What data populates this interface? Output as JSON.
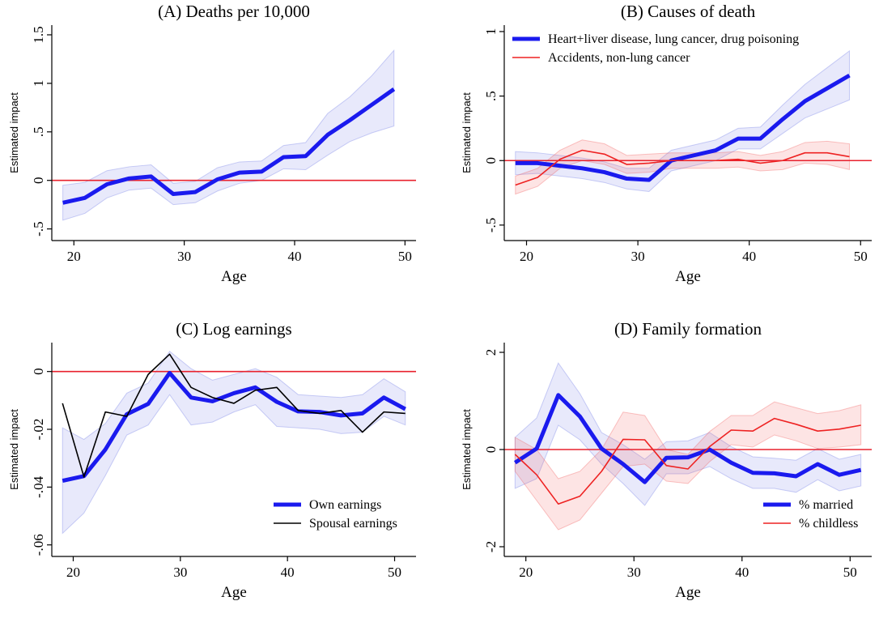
{
  "chart_data": [
    {
      "type": "line",
      "title": "(A) Deaths per 10,000",
      "xlabel": "Age",
      "ylabel": "Estimated impact",
      "xlim": [
        18,
        51
      ],
      "ylim": [
        -0.62,
        1.6
      ],
      "xticks": [
        20,
        30,
        40,
        50
      ],
      "xtick_labels": [
        "20",
        "30",
        "40",
        "50"
      ],
      "yticks": [
        -0.5,
        0,
        0.5,
        1,
        1.5
      ],
      "ytick_labels": [
        "-.5",
        "0",
        ".5",
        "1",
        "1.5"
      ],
      "reference_line": 0,
      "x": [
        19,
        21,
        23,
        25,
        27,
        29,
        31,
        33,
        35,
        37,
        39,
        41,
        43,
        45,
        47,
        49
      ],
      "series": [
        {
          "name": "",
          "color": "#1a1aee",
          "style": "thick",
          "values": [
            -0.23,
            -0.18,
            -0.04,
            0.02,
            0.04,
            -0.14,
            -0.12,
            0.01,
            0.08,
            0.09,
            0.24,
            0.25,
            0.47,
            0.62,
            0.78,
            0.94
          ],
          "ci_low": [
            -0.41,
            -0.34,
            -0.18,
            -0.1,
            -0.08,
            -0.25,
            -0.23,
            -0.11,
            -0.03,
            0.0,
            0.12,
            0.11,
            0.26,
            0.4,
            0.49,
            0.56
          ],
          "ci_high": [
            -0.05,
            -0.02,
            0.1,
            0.14,
            0.16,
            -0.03,
            -0.01,
            0.13,
            0.19,
            0.2,
            0.36,
            0.39,
            0.69,
            0.86,
            1.08,
            1.34
          ]
        }
      ],
      "legend": []
    },
    {
      "type": "line",
      "title": "(B) Causes of death",
      "xlabel": "Age",
      "ylabel": "Estimated impact",
      "xlim": [
        18,
        51
      ],
      "ylim": [
        -0.62,
        1.05
      ],
      "xticks": [
        20,
        30,
        40,
        50
      ],
      "xtick_labels": [
        "20",
        "30",
        "40",
        "50"
      ],
      "yticks": [
        -0.5,
        0,
        0.5,
        1
      ],
      "ytick_labels": [
        "-.5",
        "0",
        ".5",
        "1"
      ],
      "reference_line": 0,
      "x": [
        19,
        21,
        23,
        25,
        27,
        29,
        31,
        33,
        35,
        37,
        39,
        41,
        43,
        45,
        47,
        49
      ],
      "series": [
        {
          "name": "Heart+liver disease, lung cancer, drug poisoning",
          "color": "#1a1aee",
          "style": "thick",
          "values": [
            -0.02,
            -0.02,
            -0.04,
            -0.06,
            -0.09,
            -0.14,
            -0.15,
            0.0,
            0.04,
            0.08,
            0.17,
            0.17,
            0.32,
            0.46,
            0.56,
            0.66
          ],
          "ci_low": [
            -0.11,
            -0.1,
            -0.12,
            -0.14,
            -0.17,
            -0.22,
            -0.24,
            -0.08,
            -0.04,
            0.0,
            0.09,
            0.09,
            0.21,
            0.33,
            0.4,
            0.47
          ],
          "ci_high": [
            0.07,
            0.06,
            0.04,
            0.02,
            -0.01,
            -0.06,
            -0.06,
            0.08,
            0.12,
            0.16,
            0.25,
            0.26,
            0.43,
            0.59,
            0.72,
            0.85
          ]
        },
        {
          "name": "Accidents, non-lung cancer",
          "color": "#ee2222",
          "style": "thin",
          "values": [
            -0.19,
            -0.13,
            0.01,
            0.08,
            0.05,
            -0.03,
            -0.02,
            0.0,
            0.0,
            0.0,
            0.01,
            -0.02,
            0.0,
            0.06,
            0.06,
            0.03
          ],
          "ci_low": [
            -0.26,
            -0.2,
            -0.06,
            0.0,
            -0.03,
            -0.1,
            -0.09,
            -0.06,
            -0.06,
            -0.06,
            -0.05,
            -0.08,
            -0.07,
            -0.02,
            -0.03,
            -0.07
          ],
          "ci_high": [
            -0.12,
            -0.06,
            0.08,
            0.16,
            0.13,
            0.04,
            0.05,
            0.06,
            0.06,
            0.06,
            0.07,
            0.04,
            0.07,
            0.14,
            0.15,
            0.13
          ]
        }
      ],
      "legend": [
        "Heart+liver disease, lung cancer, drug poisoning",
        "Accidents, non-lung cancer"
      ]
    },
    {
      "type": "line",
      "title": "(C) Log earnings",
      "xlabel": "Age",
      "ylabel": "Estimated impact",
      "xlim": [
        18,
        52
      ],
      "ylim": [
        -0.064,
        0.01
      ],
      "xticks": [
        20,
        30,
        40,
        50
      ],
      "xtick_labels": [
        "20",
        "30",
        "40",
        "50"
      ],
      "yticks": [
        -0.06,
        -0.04,
        -0.02,
        0
      ],
      "ytick_labels": [
        "-.06",
        "-.04",
        "-.02",
        "0"
      ],
      "reference_line": 0,
      "x": [
        19,
        21,
        23,
        25,
        27,
        29,
        31,
        33,
        35,
        37,
        39,
        41,
        43,
        45,
        47,
        49,
        51
      ],
      "series": [
        {
          "name": "Own earnings",
          "color": "#1a1aee",
          "style": "thick",
          "values": [
            -0.0378,
            -0.0362,
            -0.027,
            -0.0148,
            -0.0112,
            -0.0005,
            -0.009,
            -0.0103,
            -0.0075,
            -0.0055,
            -0.0105,
            -0.0138,
            -0.014,
            -0.0152,
            -0.0145,
            -0.009,
            -0.013
          ],
          "ci_low": [
            -0.056,
            -0.049,
            -0.036,
            -0.022,
            -0.0185,
            -0.008,
            -0.0185,
            -0.0175,
            -0.014,
            -0.0115,
            -0.019,
            -0.0195,
            -0.02,
            -0.0215,
            -0.021,
            -0.0155,
            -0.0185
          ],
          "ci_high": [
            -0.0195,
            -0.0235,
            -0.018,
            -0.0075,
            -0.004,
            0.007,
            0.001,
            -0.003,
            -0.001,
            0.001,
            -0.002,
            -0.008,
            -0.0085,
            -0.009,
            -0.008,
            -0.0025,
            -0.007
          ]
        },
        {
          "name": "Spousal earnings",
          "color": "#000000",
          "style": "thin",
          "values": [
            -0.011,
            -0.0365,
            -0.014,
            -0.0155,
            -0.001,
            0.006,
            -0.0055,
            -0.009,
            -0.011,
            -0.0065,
            -0.0055,
            -0.0135,
            -0.0145,
            -0.0135,
            -0.021,
            -0.014,
            -0.0145
          ],
          "ci_low": [],
          "ci_high": []
        }
      ],
      "legend": [
        "Own earnings",
        "Spousal earnings"
      ]
    },
    {
      "type": "line",
      "title": "(D) Family formation",
      "xlabel": "Age",
      "ylabel": "Estimated impact",
      "xlim": [
        18,
        52
      ],
      "ylim": [
        -2.2,
        2.2
      ],
      "xticks": [
        20,
        30,
        40,
        50
      ],
      "xtick_labels": [
        "20",
        "30",
        "40",
        "50"
      ],
      "yticks": [
        -2,
        0,
        2
      ],
      "ytick_labels": [
        "-2",
        "0",
        "2"
      ],
      "reference_line": 0,
      "x": [
        19,
        21,
        23,
        25,
        27,
        29,
        31,
        33,
        35,
        37,
        39,
        41,
        43,
        45,
        47,
        49,
        51
      ],
      "series": [
        {
          "name": "% married",
          "color": "#1a1aee",
          "style": "thick",
          "values": [
            -0.27,
            0.02,
            1.12,
            0.68,
            0.02,
            -0.3,
            -0.67,
            -0.17,
            -0.16,
            0.0,
            -0.27,
            -0.48,
            -0.49,
            -0.55,
            -0.3,
            -0.52,
            -0.42
          ],
          "ci_low": [
            -0.8,
            -0.6,
            0.5,
            0.2,
            -0.3,
            -0.7,
            -1.15,
            -0.5,
            -0.5,
            -0.35,
            -0.6,
            -0.8,
            -0.8,
            -0.88,
            -0.62,
            -0.85,
            -0.75
          ],
          "ci_high": [
            0.25,
            0.65,
            1.78,
            1.15,
            0.35,
            0.1,
            -0.2,
            0.16,
            0.18,
            0.35,
            0.06,
            -0.15,
            -0.18,
            -0.22,
            0.02,
            -0.2,
            -0.1
          ]
        },
        {
          "name": "% childless",
          "color": "#ee2222",
          "style": "thin",
          "values": [
            -0.1,
            -0.52,
            -1.12,
            -0.96,
            -0.45,
            0.21,
            0.2,
            -0.33,
            -0.4,
            0.06,
            0.4,
            0.38,
            0.64,
            0.52,
            0.38,
            0.42,
            0.5
          ],
          "ci_low": [
            -0.45,
            -1.05,
            -1.65,
            -1.45,
            -0.9,
            -0.35,
            -0.3,
            -0.65,
            -0.7,
            -0.25,
            0.1,
            0.05,
            0.3,
            0.18,
            0.02,
            0.05,
            0.1
          ],
          "ci_high": [
            0.25,
            0.0,
            -0.6,
            -0.45,
            0.0,
            0.77,
            0.7,
            0.0,
            -0.1,
            0.37,
            0.7,
            0.7,
            0.98,
            0.86,
            0.74,
            0.8,
            0.92
          ]
        }
      ],
      "legend": [
        "% married",
        "% childless"
      ]
    }
  ]
}
